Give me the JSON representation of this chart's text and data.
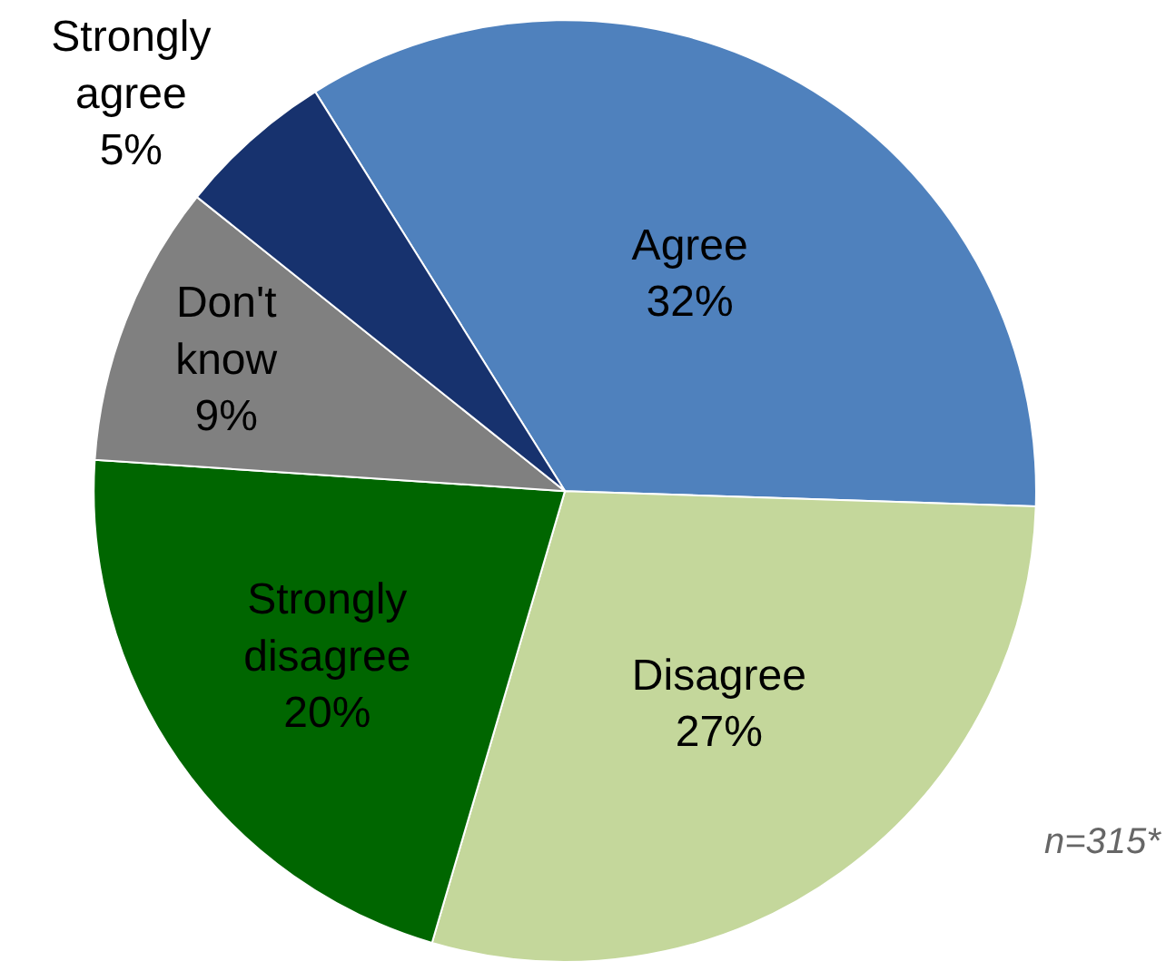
{
  "chart_data": {
    "type": "pie",
    "categories": [
      "Agree",
      "Disagree",
      "Strongly disagree",
      "Don't know",
      "Strongly agree"
    ],
    "values": [
      32,
      27,
      20,
      9,
      5
    ],
    "value_labels": [
      "32%",
      "27%",
      "20%",
      "9%",
      "5%"
    ],
    "colors": [
      "#4f81bd",
      "#c4d79b",
      "#006600",
      "#808080",
      "#17326e"
    ],
    "annotations": [
      "n=315*"
    ],
    "legend": false
  }
}
